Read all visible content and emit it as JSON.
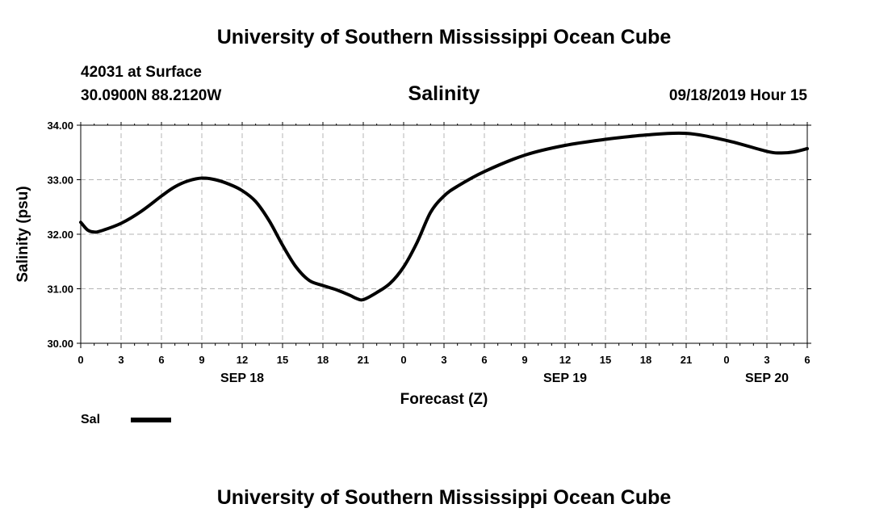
{
  "header": {
    "title_top": "University of Southern Mississippi Ocean Cube",
    "station": "42031 at Surface",
    "location": "30.0900N 88.2120W",
    "datetime": "09/18/2019 Hour 15",
    "title_bottom": "University of Southern Mississippi Ocean Cube"
  },
  "legend": {
    "label": "Sal"
  },
  "chart_data": {
    "type": "line",
    "title": "Salinity",
    "xlabel": "Forecast (Z)",
    "ylabel": "Salinity (psu)",
    "xlim": [
      0,
      54
    ],
    "ylim": [
      30.0,
      34.0
    ],
    "yticks": [
      "30.00",
      "31.00",
      "32.00",
      "33.00",
      "34.00"
    ],
    "ytick_values": [
      30,
      31,
      32,
      33,
      34
    ],
    "xticks": [
      "0",
      "3",
      "6",
      "9",
      "12",
      "15",
      "18",
      "21",
      "0",
      "3",
      "6",
      "9",
      "12",
      "15",
      "18",
      "21",
      "0",
      "3",
      "6"
    ],
    "date_labels": [
      {
        "label": "SEP 18",
        "hour": 12
      },
      {
        "label": "SEP 19",
        "hour": 36
      },
      {
        "label": "SEP 20",
        "hour": 51
      }
    ],
    "grid": true,
    "series": [
      {
        "name": "Sal",
        "x": [
          0,
          0.5,
          1,
          1.5,
          3,
          4.5,
          6,
          7,
          8,
          9,
          10,
          11,
          12,
          13,
          14,
          15,
          16,
          17,
          18,
          19,
          20,
          20.5,
          21,
          22,
          23,
          24,
          25,
          26,
          27,
          28,
          30,
          33,
          36,
          39,
          42,
          45,
          48,
          51,
          52,
          53,
          54
        ],
        "y": [
          32.22,
          32.08,
          32.04,
          32.06,
          32.2,
          32.42,
          32.7,
          32.87,
          32.98,
          33.03,
          33.0,
          32.92,
          32.8,
          32.6,
          32.25,
          31.8,
          31.4,
          31.15,
          31.06,
          30.98,
          30.88,
          30.82,
          30.8,
          30.93,
          31.1,
          31.4,
          31.85,
          32.4,
          32.7,
          32.88,
          33.15,
          33.45,
          33.63,
          33.74,
          33.82,
          33.85,
          33.72,
          33.52,
          33.49,
          33.51,
          33.57
        ]
      }
    ]
  }
}
